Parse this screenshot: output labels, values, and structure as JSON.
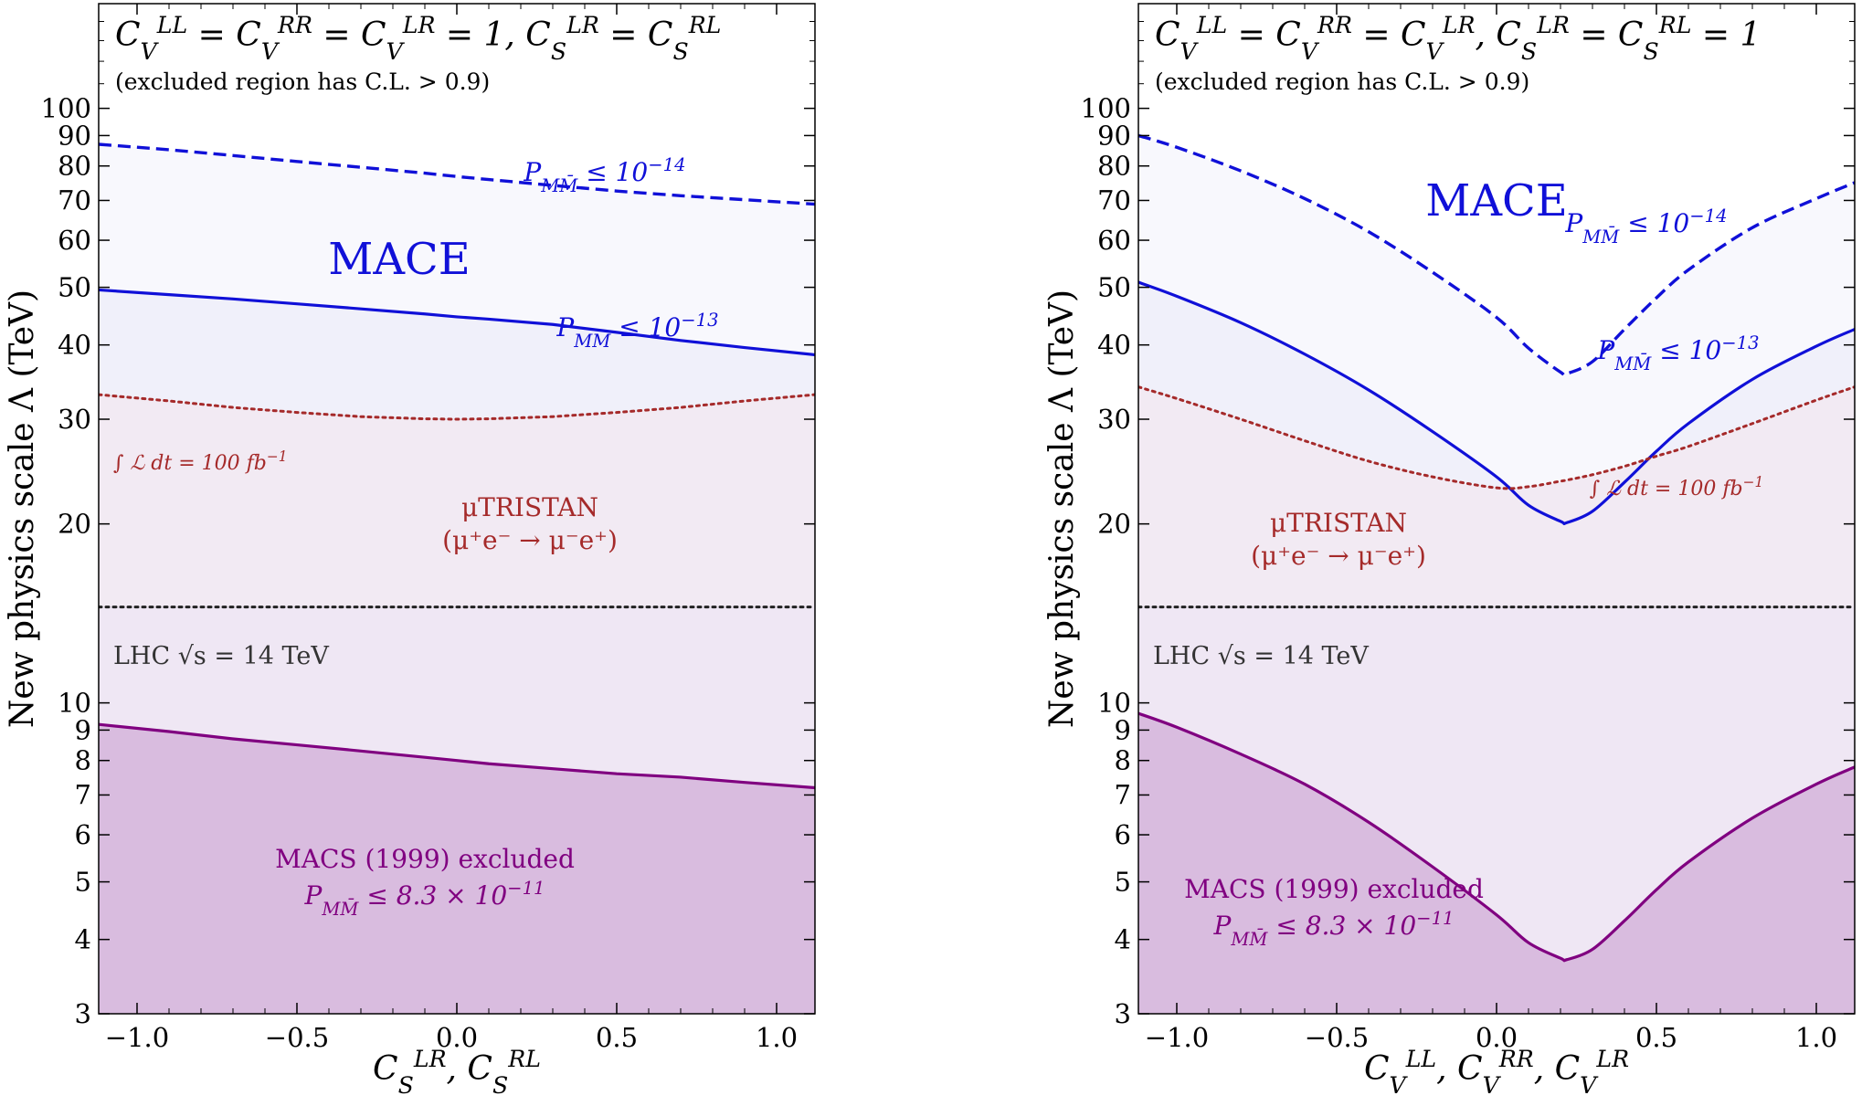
{
  "chart_data": [
    {
      "type": "line",
      "condition_text": "C_V^LL = C_V^RR = C_V^LR = 1,  C_S^LR = C_S^RL",
      "note": "(excluded region has C.L. > 0.9)",
      "xlabel": "C_S^LR,  C_S^RL",
      "ylabel": "New physics scale Λ (TeV)",
      "xlim": [
        -1.12,
        1.12
      ],
      "ylim": [
        3,
        150
      ],
      "yscale": "log",
      "xticks": [
        -1.0,
        -0.5,
        0.0,
        0.5,
        1.0
      ],
      "xtick_labels": [
        "−1.0",
        "−0.5",
        "0.0",
        "0.5",
        "1.0"
      ],
      "yticks": [
        3,
        4,
        5,
        6,
        7,
        8,
        9,
        10,
        20,
        30,
        40,
        50,
        60,
        70,
        80,
        90,
        100
      ],
      "ytick_labels": [
        "3",
        "4",
        "5",
        "6",
        "7",
        "8",
        "9",
        "10",
        "20",
        "30",
        "40",
        "50",
        "60",
        "70",
        "80",
        "90",
        "100"
      ],
      "grid": false,
      "x": [
        -1.12,
        -0.9,
        -0.7,
        -0.5,
        -0.3,
        -0.1,
        0.0,
        0.1,
        0.3,
        0.5,
        0.7,
        0.9,
        1.12
      ],
      "series": [
        {
          "key": "mace14",
          "values": [
            87,
            85.2,
            83.3,
            81.4,
            79.6,
            77.8,
            76.8,
            75.9,
            74.2,
            72.6,
            71.3,
            70.2,
            69
          ]
        },
        {
          "key": "mace13",
          "values": [
            49.5,
            48.6,
            47.8,
            46.9,
            46.0,
            45.1,
            44.6,
            44.2,
            43.3,
            42.0,
            40.7,
            39.6,
            38.5
          ]
        },
        {
          "key": "mutristan",
          "values": [
            33,
            32.2,
            31.4,
            30.8,
            30.3,
            30.05,
            30.0,
            30.05,
            30.3,
            30.8,
            31.4,
            32.2,
            33
          ]
        },
        {
          "key": "lhc",
          "values": [
            14.5,
            14.5,
            14.5,
            14.5,
            14.5,
            14.5,
            14.5,
            14.5,
            14.5,
            14.5,
            14.5,
            14.5,
            14.5
          ]
        },
        {
          "key": "macs",
          "values": [
            9.2,
            8.95,
            8.7,
            8.5,
            8.3,
            8.1,
            8.0,
            7.9,
            7.75,
            7.6,
            7.5,
            7.35,
            7.2
          ]
        }
      ],
      "labels": {
        "mace": "MACE",
        "p14": "P_MM̄ ≤ 10^−14",
        "p13": "P_MM̄ ≤ 10^−13",
        "lumi": "∫ ℒ dt = 100 fb^−1",
        "mutristan_1": "μTRISTAN",
        "mutristan_2": "(μ⁺e⁻ → μ⁻e⁺)",
        "lhc": "LHC √s = 14 TeV",
        "macs_1": "MACS (1999) excluded",
        "macs_2": "P_MM̄ ≤ 8.3 × 10^−11"
      }
    },
    {
      "type": "line",
      "condition_text": "C_V^LL = C_V^RR = C_V^LR,  C_S^LR = C_S^RL = 1",
      "note": "(excluded region has C.L. > 0.9)",
      "xlabel": "C_V^LL,  C_V^RR,  C_V^LR",
      "ylabel": "New physics scale Λ (TeV)",
      "xlim": [
        -1.12,
        1.12
      ],
      "ylim": [
        3,
        150
      ],
      "yscale": "log",
      "xticks": [
        -1.0,
        -0.5,
        0.0,
        0.5,
        1.0
      ],
      "xtick_labels": [
        "−1.0",
        "−0.5",
        "0.0",
        "0.5",
        "1.0"
      ],
      "yticks": [
        3,
        4,
        5,
        6,
        7,
        8,
        9,
        10,
        20,
        30,
        40,
        50,
        60,
        70,
        80,
        90,
        100
      ],
      "ytick_labels": [
        "3",
        "4",
        "5",
        "6",
        "7",
        "8",
        "9",
        "10",
        "20",
        "30",
        "40",
        "50",
        "60",
        "70",
        "80",
        "90",
        "100"
      ],
      "grid": false,
      "x": [
        -1.12,
        -1.0,
        -0.8,
        -0.6,
        -0.4,
        -0.2,
        0.0,
        0.1,
        0.2,
        0.22,
        0.3,
        0.4,
        0.5,
        0.6,
        0.8,
        1.0,
        1.12
      ],
      "series": [
        {
          "key": "mace14",
          "values": [
            90,
            86,
            78.5,
            70.5,
            62,
            53,
            44.5,
            39.5,
            36.0,
            35.8,
            37.5,
            42.5,
            48,
            53.5,
            63,
            70.5,
            75
          ]
        },
        {
          "key": "mace13",
          "values": [
            51,
            48.3,
            43.6,
            38.6,
            33.6,
            28.6,
            24.0,
            21.5,
            20.2,
            20.1,
            21.0,
            23.5,
            26.5,
            29.5,
            35.0,
            39.8,
            42.5
          ]
        },
        {
          "key": "mutristan",
          "values": [
            34,
            32.5,
            30.0,
            27.6,
            25.5,
            24.0,
            23.0,
            23.1,
            23.6,
            23.7,
            24.2,
            25.0,
            26.0,
            27.0,
            29.5,
            32.3,
            34
          ]
        },
        {
          "key": "lhc",
          "values": [
            14.5,
            14.5,
            14.5,
            14.5,
            14.5,
            14.5,
            14.5,
            14.5,
            14.5,
            14.5,
            14.5,
            14.5,
            14.5,
            14.5,
            14.5,
            14.5,
            14.5
          ]
        },
        {
          "key": "macs",
          "values": [
            9.6,
            9.1,
            8.2,
            7.3,
            6.3,
            5.3,
            4.4,
            3.95,
            3.72,
            3.7,
            3.85,
            4.3,
            4.85,
            5.4,
            6.4,
            7.3,
            7.8
          ]
        }
      ],
      "labels": {
        "mace": "MACE",
        "p14": "P_MM̄ ≤ 10^−14",
        "p13": "P_MM̄ ≤ 10^−13",
        "lumi": "∫ ℒ dt = 100 fb^−1",
        "mutristan_1": "μTRISTAN",
        "mutristan_2": "(μ⁺e⁻ → μ⁻e⁺)",
        "lhc": "LHC √s = 14 TeV",
        "macs_1": "MACS (1999) excluded",
        "macs_2": "P_MM̄ ≤ 8.3 × 10^−11"
      }
    }
  ],
  "colors": {
    "mace": "#1010d8",
    "mace14_fill": "#f8f8fd",
    "mace13_fill": "#f0f0fa",
    "mutristan": "#a52a2a",
    "mutristan_fill": "#f2eaf3",
    "lhc": "#222222",
    "lhc_fill": "#efe7f4",
    "macs": "#800080",
    "macs_fill": "#d9bcdf"
  }
}
